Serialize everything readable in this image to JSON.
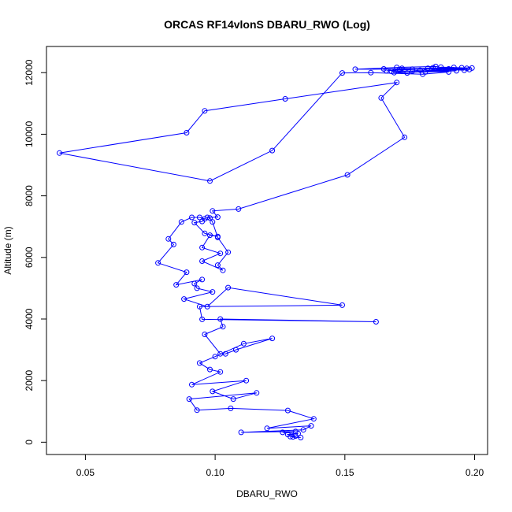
{
  "chart_data": {
    "type": "line",
    "title": "ORCAS RF14vlonS DBARU_RWO (Log)",
    "xlabel": "DBARU_RWO",
    "ylabel": "Altitude (m)",
    "xlim": [
      0.035,
      0.205
    ],
    "ylim": [
      -400,
      12850
    ],
    "x_ticks": [
      0.05,
      0.1,
      0.15,
      0.2
    ],
    "x_tick_labels": [
      "0.05",
      "0.10",
      "0.15",
      "0.20"
    ],
    "y_ticks": [
      0,
      2000,
      4000,
      6000,
      8000,
      10000,
      12000
    ],
    "y_tick_labels": [
      "0",
      "2000",
      "4000",
      "6000",
      "8000",
      "10000",
      "12000"
    ],
    "grid": false,
    "marker": "open-circle",
    "series": [
      {
        "color": "#0000ff",
        "points": [
          [
            0.131,
            200
          ],
          [
            0.129,
            180
          ],
          [
            0.133,
            150
          ],
          [
            0.13,
            170
          ],
          [
            0.128,
            250
          ],
          [
            0.132,
            280
          ],
          [
            0.126,
            320
          ],
          [
            0.131,
            350
          ],
          [
            0.11,
            320
          ],
          [
            0.134,
            400
          ],
          [
            0.137,
            530
          ],
          [
            0.12,
            450
          ],
          [
            0.138,
            760
          ],
          [
            0.128,
            1030
          ],
          [
            0.106,
            1100
          ],
          [
            0.093,
            1040
          ],
          [
            0.09,
            1400
          ],
          [
            0.116,
            1600
          ],
          [
            0.107,
            1400
          ],
          [
            0.099,
            1650
          ],
          [
            0.112,
            2000
          ],
          [
            0.091,
            1870
          ],
          [
            0.102,
            2280
          ],
          [
            0.098,
            2360
          ],
          [
            0.094,
            2570
          ],
          [
            0.1,
            2780
          ],
          [
            0.111,
            3200
          ],
          [
            0.122,
            3370
          ],
          [
            0.108,
            3000
          ],
          [
            0.104,
            2870
          ],
          [
            0.102,
            2870
          ],
          [
            0.096,
            3500
          ],
          [
            0.103,
            3750
          ],
          [
            0.102,
            4000
          ],
          [
            0.162,
            3910
          ],
          [
            0.095,
            3990
          ],
          [
            0.094,
            4400
          ],
          [
            0.149,
            4450
          ],
          [
            0.105,
            5020
          ],
          [
            0.097,
            4400
          ],
          [
            0.088,
            4650
          ],
          [
            0.099,
            4880
          ],
          [
            0.093,
            5000
          ],
          [
            0.092,
            5150
          ],
          [
            0.095,
            5280
          ],
          [
            0.085,
            5110
          ],
          [
            0.089,
            5520
          ],
          [
            0.078,
            5820
          ],
          [
            0.084,
            6420
          ],
          [
            0.082,
            6600
          ],
          [
            0.087,
            7150
          ],
          [
            0.091,
            7300
          ],
          [
            0.094,
            7300
          ],
          [
            0.096,
            7250
          ],
          [
            0.095,
            7170
          ],
          [
            0.092,
            7130
          ],
          [
            0.096,
            6780
          ],
          [
            0.101,
            6680
          ],
          [
            0.098,
            6720
          ],
          [
            0.095,
            6320
          ],
          [
            0.102,
            6130
          ],
          [
            0.095,
            5880
          ],
          [
            0.103,
            5580
          ],
          [
            0.101,
            5750
          ],
          [
            0.105,
            6170
          ],
          [
            0.101,
            6650
          ],
          [
            0.099,
            7150
          ],
          [
            0.098,
            7280
          ],
          [
            0.097,
            7300
          ],
          [
            0.101,
            7310
          ],
          [
            0.099,
            7510
          ],
          [
            0.109,
            7570
          ],
          [
            0.151,
            8680
          ],
          [
            0.173,
            9900
          ],
          [
            0.164,
            11180
          ],
          [
            0.17,
            11680
          ],
          [
            0.127,
            11150
          ],
          [
            0.096,
            10760
          ],
          [
            0.089,
            10050
          ],
          [
            0.04,
            9390
          ],
          [
            0.098,
            8480
          ],
          [
            0.122,
            9470
          ]
        ],
        "upper_points": [
          [
            0.149,
            11990
          ],
          [
            0.16,
            12000
          ],
          [
            0.18,
            11950
          ],
          [
            0.19,
            12020
          ],
          [
            0.176,
            12050
          ],
          [
            0.168,
            12040
          ],
          [
            0.171,
            12100
          ],
          [
            0.165,
            12120
          ],
          [
            0.182,
            12140
          ],
          [
            0.195,
            12160
          ],
          [
            0.187,
            12180
          ],
          [
            0.199,
            12150
          ],
          [
            0.176,
            12110
          ],
          [
            0.154,
            12110
          ],
          [
            0.17,
            12170
          ],
          [
            0.185,
            12200
          ],
          [
            0.19,
            12120
          ],
          [
            0.197,
            12140
          ],
          [
            0.181,
            12020
          ],
          [
            0.193,
            12060
          ],
          [
            0.179,
            12080
          ],
          [
            0.169,
            12000
          ],
          [
            0.174,
            11990
          ],
          [
            0.188,
            12100
          ],
          [
            0.192,
            12170
          ],
          [
            0.166,
            12060
          ],
          [
            0.184,
            12160
          ],
          [
            0.196,
            12080
          ],
          [
            0.172,
            12140
          ],
          [
            0.198,
            12100
          ]
        ]
      }
    ]
  }
}
